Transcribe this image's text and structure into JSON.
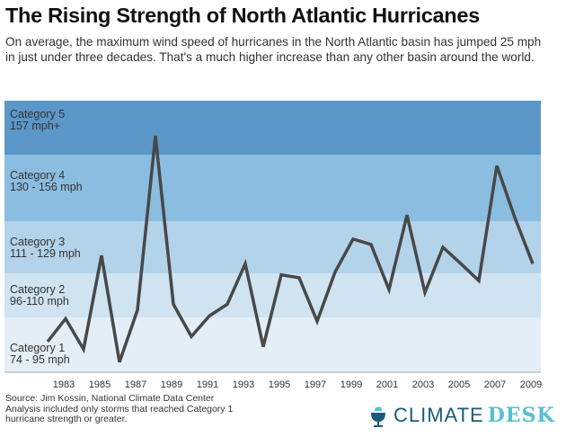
{
  "header": {
    "title": "The Rising Strength of North Atlantic Hurricanes",
    "subtitle": "On average, the maximum wind speed of hurricanes in the North Atlantic basin has jumped 25 mph in just under three decades. That's a much higher increase than any other basin around the world."
  },
  "chart_data": {
    "type": "line",
    "title": "The Rising Strength of North Atlantic Hurricanes",
    "xlabel": "",
    "ylabel": "",
    "x": [
      1982,
      1983,
      1984,
      1985,
      1986,
      1987,
      1988,
      1989,
      1990,
      1991,
      1992,
      1993,
      1994,
      1995,
      1996,
      1997,
      1998,
      1999,
      2000,
      2001,
      2002,
      2003,
      2004,
      2005,
      2006,
      2007,
      2008,
      2009
    ],
    "values": [
      86,
      95,
      83,
      117,
      78,
      98,
      164,
      100,
      88,
      96,
      100,
      114,
      84,
      110,
      109,
      94,
      111,
      123,
      121,
      105,
      132,
      104,
      120,
      114,
      108,
      152,
      131,
      114
    ],
    "x_tick_labels": [
      "1983",
      "1985",
      "1987",
      "1989",
      "1991",
      "1993",
      "1995",
      "1997",
      "1999",
      "2001",
      "2003",
      "2005",
      "2007",
      "2009"
    ],
    "bands": [
      {
        "name": "Category 5",
        "range": "157 mph+",
        "color": "#5b97c9"
      },
      {
        "name": "Category 4",
        "range": "130 - 156 mph",
        "color": "#8bbde0"
      },
      {
        "name": "Category 3",
        "range": "111 - 129 mph",
        "color": "#b3d3ea"
      },
      {
        "name": "Category 2",
        "range": "96-110 mph",
        "color": "#cfe3f1"
      },
      {
        "name": "Category 1",
        "range": "74 - 95 mph",
        "color": "#e3eef6"
      }
    ],
    "line_color": "#484848",
    "grid": false
  },
  "footer": {
    "source_lines": [
      "Source: Jim Kossin, National Climate Data Center",
      "Analysis included only storms that reached Category 1",
      "hurricane strength or greater."
    ],
    "logo_word1": "CLIMATE",
    "logo_word2": "DESK"
  }
}
